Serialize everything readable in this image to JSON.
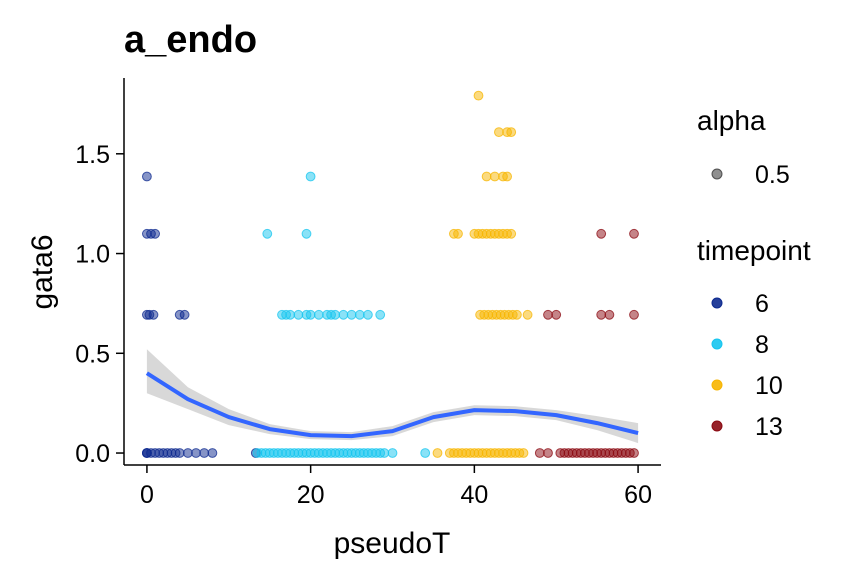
{
  "chart_data": {
    "type": "scatter",
    "title": "a_endo",
    "xlabel": "pseudoT",
    "ylabel": "gata6",
    "xlim": [
      -2.8,
      62.8
    ],
    "ylim": [
      -0.06,
      1.88
    ],
    "xticks": [
      0,
      20,
      40,
      60
    ],
    "yticks": [
      0.0,
      0.5,
      1.0,
      1.5
    ],
    "ytick_labels": [
      "0.0",
      "0.5",
      "1.0",
      "1.5"
    ],
    "grid": false,
    "legend_placement": "right",
    "legend": {
      "alpha": {
        "title": "alpha",
        "entries": [
          {
            "label": "0.5",
            "color": "#333333"
          }
        ]
      },
      "timepoint": {
        "title": "timepoint",
        "entries": [
          {
            "label": "6",
            "color": "#0d2a8f"
          },
          {
            "label": "8",
            "color": "#16c5ef"
          },
          {
            "label": "10",
            "color": "#f7b500"
          },
          {
            "label": "13",
            "color": "#8b0a12"
          }
        ]
      }
    },
    "series": [
      {
        "name": "6",
        "color": "#0d2a8f",
        "x": [
          0,
          0,
          0,
          0.5,
          1,
          1.5,
          2,
          2.5,
          3,
          3.5,
          4,
          5,
          6,
          7,
          8,
          13.3,
          0,
          0.3,
          0.8,
          4,
          4.6,
          0,
          0.5,
          1,
          0
        ],
        "y": [
          0,
          0,
          0,
          0,
          0,
          0,
          0,
          0,
          0,
          0,
          0,
          0,
          0,
          0,
          0,
          0,
          0.693,
          0.693,
          0.693,
          0.693,
          0.693,
          1.099,
          1.099,
          1.099,
          1.386
        ]
      },
      {
        "name": "8",
        "color": "#16c5ef",
        "x": [
          13.5,
          14,
          14.5,
          15,
          15.5,
          16,
          16.5,
          17,
          17.5,
          18,
          18.5,
          19,
          19.5,
          20,
          20.5,
          21,
          21.5,
          22,
          22.5,
          23,
          23.5,
          24,
          24.5,
          25,
          25.5,
          26,
          26.5,
          27,
          27.5,
          28,
          28.5,
          29,
          30,
          34,
          16.5,
          17,
          17.5,
          18.5,
          19.5,
          20,
          21,
          22,
          22.5,
          23,
          24,
          25,
          26,
          27,
          28.5,
          14.7,
          19.5,
          20
        ],
        "y": [
          0,
          0,
          0,
          0,
          0,
          0,
          0,
          0,
          0,
          0,
          0,
          0,
          0,
          0,
          0,
          0,
          0,
          0,
          0,
          0,
          0,
          0,
          0,
          0,
          0,
          0,
          0,
          0,
          0,
          0,
          0,
          0,
          0,
          0,
          0.693,
          0.693,
          0.693,
          0.693,
          0.693,
          0.693,
          0.693,
          0.693,
          0.693,
          0.693,
          0.693,
          0.693,
          0.693,
          0.693,
          0.693,
          1.099,
          1.099,
          1.386
        ]
      },
      {
        "name": "10",
        "color": "#f7b500",
        "x": [
          35.5,
          37,
          37.5,
          38,
          38.5,
          39,
          39.5,
          40,
          40.5,
          41,
          41.5,
          42,
          42.5,
          43,
          43.5,
          44,
          44.5,
          45,
          45.5,
          46,
          40.7,
          41.2,
          41.7,
          42.2,
          42.7,
          43.2,
          43.7,
          44.2,
          44.7,
          45.2,
          46.5,
          37.5,
          38,
          40,
          40.5,
          41,
          41.5,
          42,
          42.5,
          43,
          43.5,
          44,
          44.5,
          41.5,
          42.5,
          43.5,
          44,
          43,
          44,
          44.5,
          40.5
        ],
        "y": [
          0,
          0,
          0,
          0,
          0,
          0,
          0,
          0,
          0,
          0,
          0,
          0,
          0,
          0,
          0,
          0,
          0,
          0,
          0,
          0,
          0.693,
          0.693,
          0.693,
          0.693,
          0.693,
          0.693,
          0.693,
          0.693,
          0.693,
          0.693,
          0.693,
          1.099,
          1.099,
          1.099,
          1.099,
          1.099,
          1.099,
          1.099,
          1.099,
          1.099,
          1.099,
          1.099,
          1.099,
          1.386,
          1.386,
          1.386,
          1.386,
          1.609,
          1.609,
          1.609,
          1.792
        ]
      },
      {
        "name": "13",
        "color": "#8b0a12",
        "x": [
          48,
          49,
          50.5,
          51,
          51.5,
          52,
          52.5,
          53,
          53.5,
          54,
          54.5,
          55,
          55.5,
          56,
          56.5,
          57,
          57.5,
          58,
          58.5,
          59,
          59.5,
          49,
          50,
          55.5,
          56.5,
          59.5,
          55.5,
          59.5
        ],
        "y": [
          0,
          0,
          0,
          0,
          0,
          0,
          0,
          0,
          0,
          0,
          0,
          0,
          0,
          0,
          0,
          0,
          0,
          0,
          0,
          0,
          0,
          0.693,
          0.693,
          0.693,
          0.693,
          0.693,
          1.099,
          1.099
        ]
      }
    ],
    "smooth": {
      "color": "#3366ff",
      "band_color": "#bebebe",
      "x": [
        0,
        5,
        10,
        15,
        20,
        25,
        30,
        35,
        40,
        45,
        50,
        55,
        60
      ],
      "y": [
        0.4,
        0.27,
        0.18,
        0.12,
        0.09,
        0.085,
        0.11,
        0.18,
        0.215,
        0.21,
        0.19,
        0.15,
        0.1
      ],
      "lower": [
        0.3,
        0.22,
        0.14,
        0.095,
        0.07,
        0.065,
        0.085,
        0.155,
        0.19,
        0.185,
        0.165,
        0.115,
        0.05
      ],
      "upper": [
        0.52,
        0.33,
        0.22,
        0.145,
        0.11,
        0.105,
        0.135,
        0.205,
        0.24,
        0.235,
        0.215,
        0.185,
        0.15
      ]
    }
  }
}
